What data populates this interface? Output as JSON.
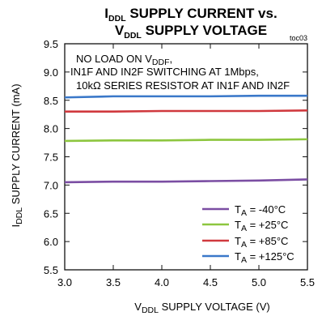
{
  "chart_data": {
    "type": "line",
    "title_line1": {
      "main": "I",
      "sub": "DDL",
      "rest": " SUPPLY CURRENT vs."
    },
    "title_line2": {
      "main": "V",
      "sub": "DDL",
      "rest": " SUPPLY VOLTAGE"
    },
    "figure_id": "toc03",
    "xlabel": {
      "main": "V",
      "sub": "DDL",
      "rest": " SUPPLY VOLTAGE (V)"
    },
    "ylabel": {
      "main": "I",
      "sub": "DDL",
      "rest": " SUPPLY CURRENT (mA)"
    },
    "xlim": [
      3.0,
      5.5
    ],
    "ylim": [
      5.5,
      9.5
    ],
    "x_ticks": [
      "3.0",
      "3.5",
      "4.0",
      "4.5",
      "5.0",
      "5.5"
    ],
    "y_ticks": [
      "9.5",
      "9.0",
      "8.5",
      "8.0",
      "7.5",
      "7.0",
      "6.5",
      "6.0",
      "5.5"
    ],
    "annotation": {
      "line1": {
        "main": "NO LOAD ON V",
        "sub": "DDF",
        "rest": ","
      },
      "line2": "IN1F AND IN2F SWITCHING AT 1Mbps,",
      "line3": "10kΩ SERIES RESISTOR AT IN1F AND IN2F"
    },
    "legend_position": "bottom-right",
    "series": [
      {
        "name": "T_A = -40°C",
        "label_main": "T",
        "label_sub": "A",
        "label_rest": " = -40°C",
        "color": "#7b4ea3",
        "x": [
          3.0,
          3.5,
          4.0,
          4.5,
          5.0,
          5.5
        ],
        "values": [
          7.05,
          7.06,
          7.06,
          7.07,
          7.08,
          7.1
        ]
      },
      {
        "name": "T_A = +25°C",
        "label_main": "T",
        "label_sub": "A",
        "label_rest": " = +25°C",
        "color": "#8dc63f",
        "x": [
          3.0,
          3.5,
          4.0,
          4.5,
          5.0,
          5.5
        ],
        "values": [
          7.78,
          7.79,
          7.79,
          7.8,
          7.8,
          7.81
        ]
      },
      {
        "name": "T_A = +85°C",
        "label_main": "T",
        "label_sub": "A",
        "label_rest": " = +85°C",
        "color": "#d0393e",
        "x": [
          3.0,
          3.5,
          4.0,
          4.5,
          5.0,
          5.5
        ],
        "values": [
          8.3,
          8.3,
          8.31,
          8.31,
          8.31,
          8.32
        ]
      },
      {
        "name": "T_A = +125°C",
        "label_main": "T",
        "label_sub": "A",
        "label_rest": " = +125°C",
        "color": "#3a78c9",
        "x": [
          3.0,
          3.5,
          4.0,
          4.5,
          5.0,
          5.5
        ],
        "values": [
          8.55,
          8.57,
          8.57,
          8.57,
          8.58,
          8.58
        ]
      }
    ]
  }
}
